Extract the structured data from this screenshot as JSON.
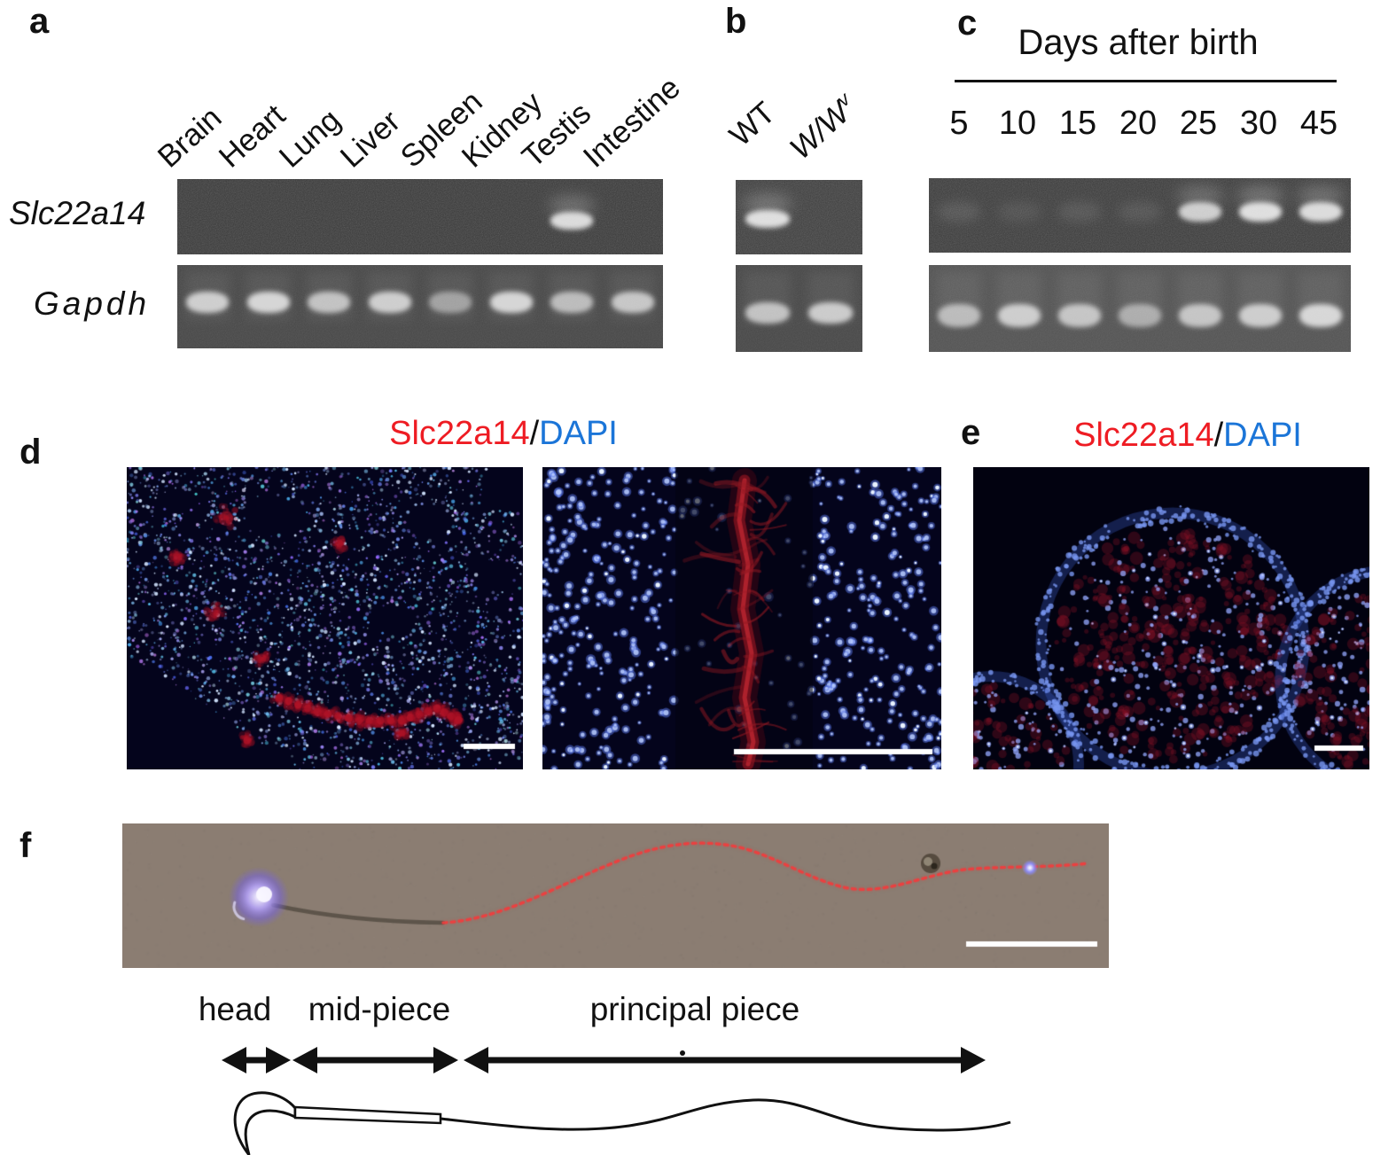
{
  "colors": {
    "red": "#ee1c23",
    "blue": "#1b75d8",
    "ink": "#111111"
  },
  "panels": {
    "a": {
      "label": "a",
      "gene_rows": [
        {
          "name": "Slc22a14"
        },
        {
          "name": "Gapdh"
        }
      ],
      "lanes": [
        "Brain",
        "Heart",
        "Lung",
        "Liver",
        "Spleen",
        "Kidney",
        "Testis",
        "Intestine"
      ]
    },
    "b": {
      "label": "b",
      "lane1": "WT",
      "lane2_base": "W/W",
      "lane2_sup": "v"
    },
    "c": {
      "label": "c",
      "title": "Days after birth",
      "lanes": [
        "5",
        "10",
        "15",
        "20",
        "25",
        "30",
        "45"
      ]
    },
    "d": {
      "label": "d",
      "stain": "Slc22a14",
      "separator": "/",
      "counterstain": "DAPI"
    },
    "e": {
      "label": "e",
      "stain": "Slc22a14",
      "separator": "/",
      "counterstain": "DAPI"
    },
    "f": {
      "label": "f",
      "region_labels": [
        "head",
        "mid-piece",
        "principal piece"
      ]
    }
  },
  "gels": {
    "a_slc": {
      "lanes": 8,
      "bands": [
        0,
        0,
        0,
        0,
        0,
        0,
        0.9,
        0
      ]
    },
    "a_gapdh": {
      "lanes": 8,
      "bands": [
        0.8,
        0.85,
        0.72,
        0.8,
        0.5,
        0.85,
        0.68,
        0.75
      ]
    },
    "b_slc": {
      "lanes": 2,
      "bands": [
        0.95,
        0
      ]
    },
    "b_gapdh": {
      "lanes": 2,
      "bands": [
        0.72,
        0.78
      ]
    },
    "c_slc": {
      "lanes": 7,
      "bands": [
        0.14,
        0.1,
        0.13,
        0.12,
        0.82,
        0.95,
        0.9
      ]
    },
    "c_gapdh": {
      "lanes": 7,
      "bands": [
        0.65,
        0.78,
        0.72,
        0.55,
        0.72,
        0.78,
        0.85
      ]
    }
  }
}
